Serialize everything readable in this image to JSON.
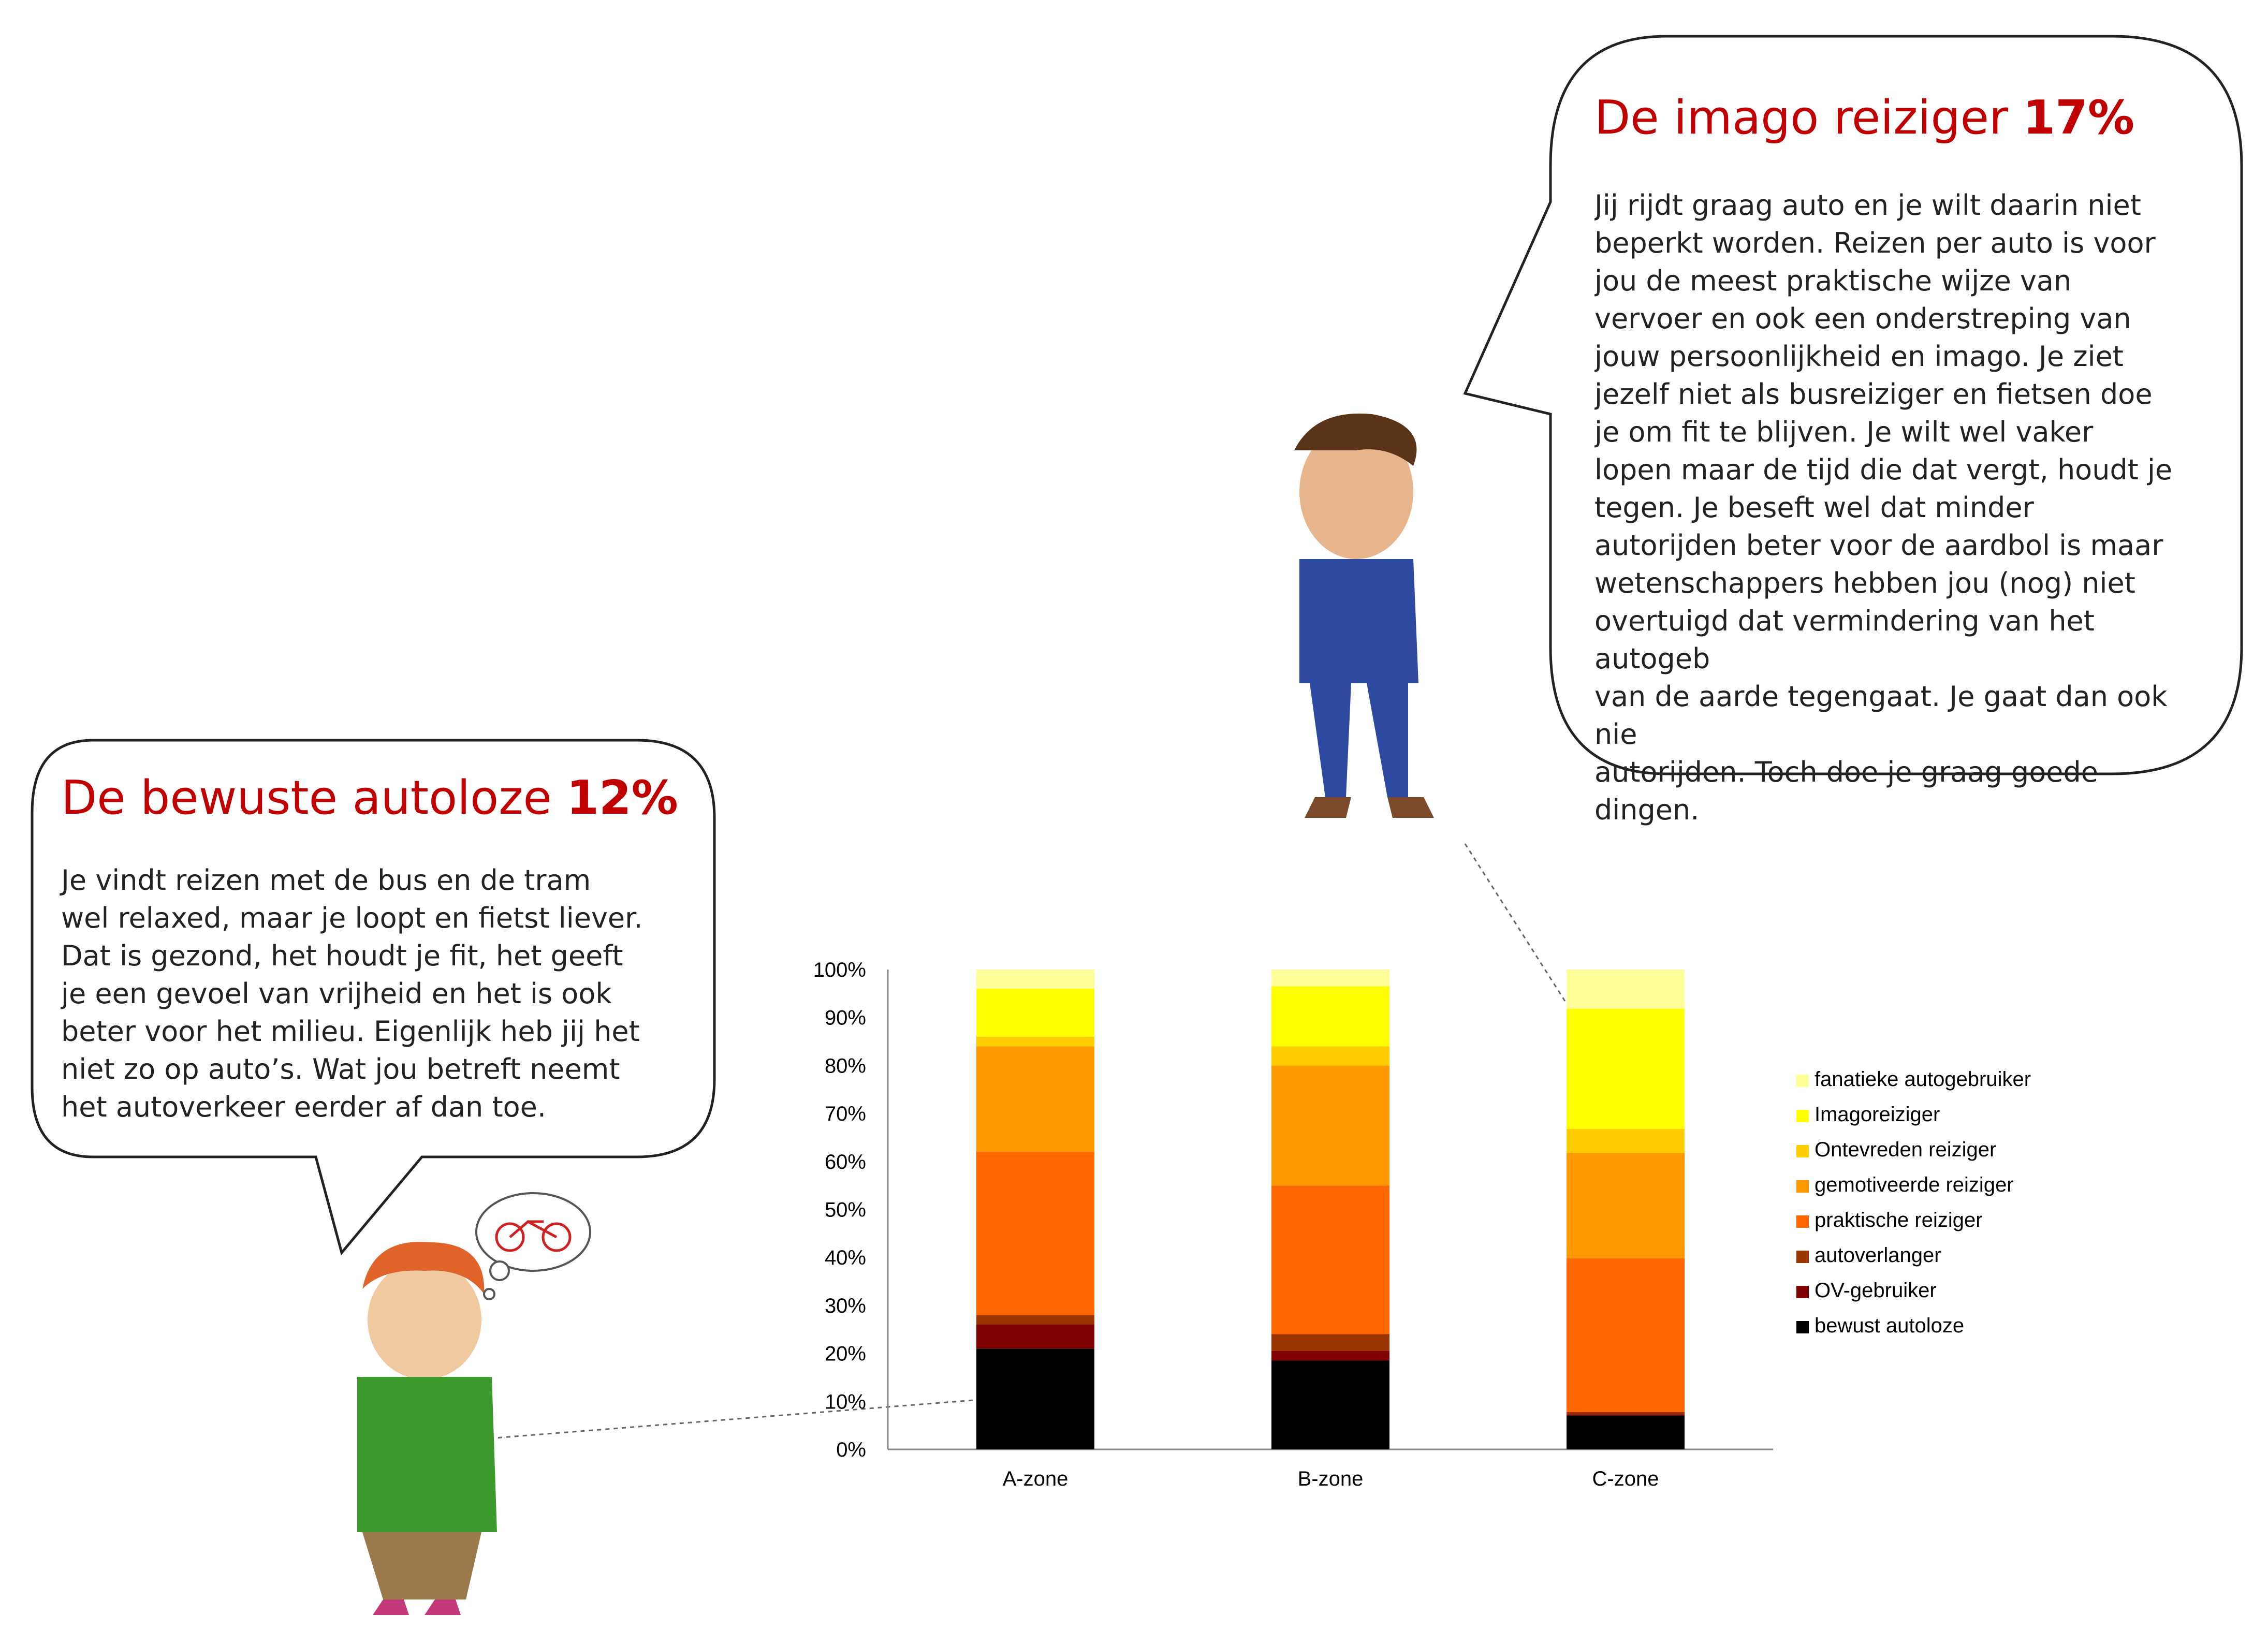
{
  "bubble_left": {
    "title": "De bewuste autoloze",
    "percent": "12%",
    "text": "Je vindt reizen met de bus en de tram\nwel relaxed, maar je loopt en fietst liever.\nDat is gezond, het houdt je fit, het geeft\nje een gevoel van vrijheid en het is ook\nbeter voor het milieu. Eigenlijk heb jij het\nniet zo op auto’s. Wat jou betreft neemt\nhet autoverkeer eerder af dan toe."
  },
  "bubble_right": {
    "title": "De imago reiziger",
    "percent": "17%",
    "text": "Jij rijdt graag auto en je wilt daarin niet\nbeperkt worden. Reizen per auto is voor\njou de meest praktische wijze van\nvervoer en ook een onderstreping van\njouw persoonlijkheid en imago. Je ziet\njezelf niet als busreiziger en fietsen doe\nje om fit te blijven. Je wilt wel vaker\nlopen maar de tijd die dat vergt, houdt je\ntegen. Je beseft wel dat minder\nautorijden beter voor de aardbol is maar\nwetenschappers hebben jou (nog) niet\novertuigd dat vermindering van het autogeb\nvan de aarde tegengaat. Je gaat dan ook nie\nautorijden. Toch doe je graag goede dingen."
  },
  "chart_data": {
    "type": "bar",
    "stacked": true,
    "categories": [
      "A-zone",
      "B-zone",
      "C-zone"
    ],
    "ylim": [
      0,
      100
    ],
    "yticks": [
      "0%",
      "10%",
      "20%",
      "30%",
      "40%",
      "50%",
      "60%",
      "70%",
      "80%",
      "90%",
      "100%"
    ],
    "legend_position": "right",
    "series": [
      {
        "name": "bewust autoloze",
        "color": "#000000",
        "values": [
          21,
          18.5,
          7
        ]
      },
      {
        "name": "OV-gebruiker",
        "color": "#7f0000",
        "values": [
          5,
          2,
          0.3
        ]
      },
      {
        "name": "autoverlanger",
        "color": "#993300",
        "values": [
          2,
          3.5,
          0.5
        ]
      },
      {
        "name": "praktische reiziger",
        "color": "#ff6600",
        "values": [
          34,
          31,
          32
        ]
      },
      {
        "name": "gemotiveerde reiziger",
        "color": "#ff9900",
        "values": [
          22,
          25,
          22
        ]
      },
      {
        "name": "Ontevreden reiziger",
        "color": "#ffcc00",
        "values": [
          2,
          4,
          5
        ]
      },
      {
        "name": "Imagoreiziger",
        "color": "#ffff00",
        "values": [
          10,
          12.5,
          25
        ]
      },
      {
        "name": "fanatieke autogebruiker",
        "color": "#ffff99",
        "values": [
          4,
          3.5,
          8.2
        ]
      }
    ]
  }
}
